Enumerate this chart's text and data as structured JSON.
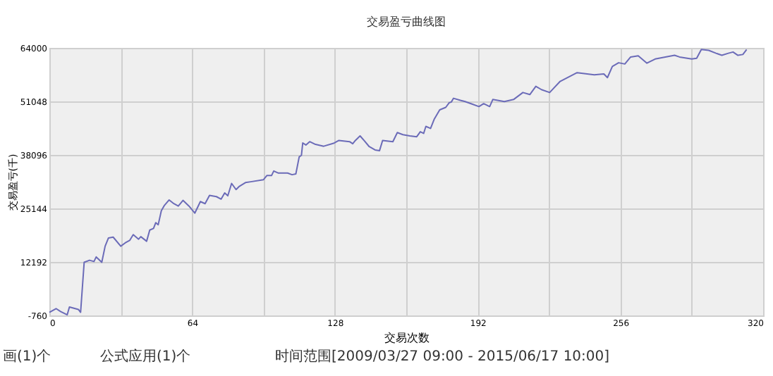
{
  "chart_data": {
    "type": "line",
    "title": "交易盈亏曲线图",
    "xlabel": "交易次数",
    "ylabel": "交易盈亏(千)",
    "x": [
      0,
      3,
      5,
      8,
      9,
      13,
      14,
      15.6,
      18,
      20,
      21,
      23.5,
      25,
      26.5,
      28.6,
      32,
      34,
      36,
      37.6,
      40,
      41,
      43.6,
      45,
      46.7,
      47.7,
      48.8,
      50.2,
      51.6,
      53.7,
      55.8,
      57.8,
      59.9,
      62.6,
      65.2,
      67.7,
      69.8,
      71.8,
      74.9,
      77,
      78.6,
      80,
      81.7,
      83.7,
      85.2,
      87.9,
      90.3,
      96,
      97.5,
      99.6,
      100.6,
      102.7,
      106.8,
      108.8,
      110.5,
      112,
      113,
      113.6,
      115,
      116.7,
      119,
      123,
      127.4,
      129.8,
      134.6,
      136,
      137.2,
      139.3,
      141.4,
      143.4,
      146,
      148,
      149.4,
      154,
      156,
      158.5,
      161.6,
      164.7,
      166.3,
      167.8,
      168.8,
      170.9,
      172.5,
      175,
      177.7,
      179.2,
      180.2,
      181.2,
      184.3,
      186.4,
      189.5,
      192.6,
      194.7,
      197.4,
      198.8,
      204,
      208.1,
      212.3,
      215.4,
      218.1,
      220.6,
      224.3,
      229,
      236.6,
      244.3,
      248.6,
      250.2,
      252.4,
      255.2,
      258,
      260.6,
      264,
      267.9,
      271.6,
      280.3,
      282.5,
      288,
      290.2,
      292.3,
      295.6,
      298.9,
      301.5,
      304.4,
      306.5,
      308.7,
      310.9,
      312.6
    ],
    "series": [
      {
        "color": "#6b6bb8",
        "values": [
          0,
          900,
          200,
          -600,
          1300,
          700,
          0,
          12100,
          12600,
          12300,
          13400,
          12100,
          16000,
          18000,
          18200,
          16000,
          16800,
          17400,
          18800,
          17700,
          18300,
          17200,
          19900,
          20300,
          21700,
          21200,
          24600,
          25900,
          27200,
          26300,
          25700,
          27100,
          25700,
          24000,
          26800,
          26300,
          28300,
          28000,
          27400,
          28900,
          28200,
          31200,
          29700,
          30500,
          31400,
          31600,
          32100,
          33100,
          33100,
          34200,
          33700,
          33700,
          33300,
          33500,
          37600,
          38000,
          41000,
          40500,
          41300,
          40700,
          40200,
          40900,
          41600,
          41300,
          40800,
          41600,
          42700,
          41400,
          40100,
          39300,
          39100,
          41600,
          41300,
          43500,
          43000,
          42700,
          42500,
          43700,
          43300,
          45000,
          44500,
          46700,
          49000,
          49600,
          50700,
          50900,
          51800,
          51300,
          51000,
          50400,
          49800,
          50500,
          49800,
          51500,
          51000,
          51500,
          53200,
          52700,
          54700,
          53900,
          53200,
          55900,
          58000,
          57500,
          57700,
          56800,
          59500,
          60400,
          60100,
          61800,
          62100,
          60300,
          61300,
          62200,
          61800,
          61300,
          61500,
          63600,
          63400,
          62700,
          62200,
          62700,
          63000,
          62200,
          62400,
          63600
        ]
      }
    ],
    "xlim": [
      0,
      320
    ],
    "ylim": [
      -760,
      64000
    ],
    "xticks": [
      0,
      {
        "value": 32,
        "label": null
      },
      64,
      {
        "value": 96,
        "label": null
      },
      128,
      {
        "value": 160,
        "label": null
      },
      192,
      {
        "value": 224,
        "label": null
      },
      256,
      {
        "value": 288,
        "label": null
      },
      320
    ],
    "yticks": [
      -760,
      12192,
      25144,
      38096,
      51048,
      64000
    ],
    "grid": true,
    "marker": "none",
    "line_style": "solid",
    "legend": false,
    "annotations": [
      "画(1)个",
      "公式应用(1)个",
      "时间范围[2009/03/27 09:00 - 2015/06/17 10:00]"
    ]
  }
}
